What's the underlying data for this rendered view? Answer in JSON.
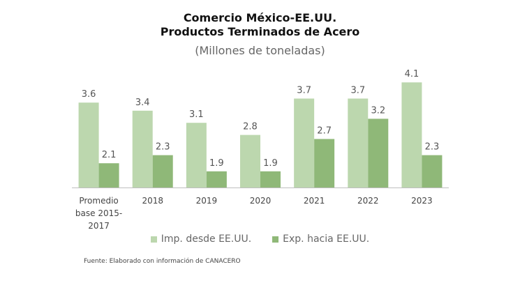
{
  "chart_data": {
    "type": "bar",
    "title": "Comercio México-EE.UU.",
    "title_line2": "Productos Terminados de Acero",
    "subtitle": "(Millones de toneladas)",
    "categories": [
      "Promedio base 2015-2017",
      "2018",
      "2019",
      "2020",
      "2021",
      "2022",
      "2023"
    ],
    "category_lines": [
      [
        "Promedio",
        "base 2015-",
        "2017"
      ],
      [
        "2018"
      ],
      [
        "2019"
      ],
      [
        "2020"
      ],
      [
        "2021"
      ],
      [
        "2022"
      ],
      [
        "2023"
      ]
    ],
    "series": [
      {
        "name": "Imp. desde EE.UU.",
        "color": "#bcd7ae",
        "values": [
          3.6,
          3.4,
          3.1,
          2.8,
          3.7,
          3.7,
          4.1
        ]
      },
      {
        "name": "Exp. hacia EE.UU.",
        "color": "#8fb878",
        "values": [
          2.1,
          2.3,
          1.9,
          1.9,
          2.7,
          3.2,
          2.3
        ]
      }
    ],
    "xlabel": "",
    "ylabel": "",
    "ylim": [
      1.5,
      4.2
    ],
    "grid": false,
    "legend": "bottom",
    "data_labels": true
  },
  "source": "Fuente: Elaborado con información de CANACERO"
}
